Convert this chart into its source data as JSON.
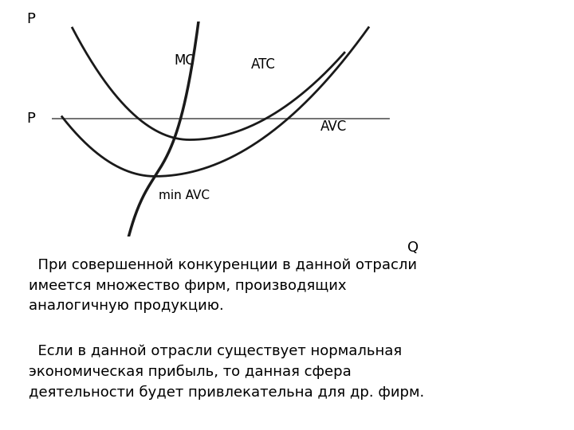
{
  "background_color": "#ffffff",
  "text_color": "#000000",
  "curve_color": "#1a1a1a",
  "price_line_color": "#666666",
  "axis_color": "#666666",
  "p_label": "P",
  "q_label": "Q",
  "price_tick_label": "P",
  "mc_label": "MC",
  "atc_label": "ATC",
  "avc_label": "AVC",
  "min_avc_label": "min AVC",
  "text_para1": "  При совершенной конкуренции в данной отрасли\nимеется множество фирм, производящих\nаналогичную продукцию.",
  "text_para2": "  Если в данной отрасли существует нормальная\nэкономическая прибыль, то данная сфера\nдеятельности будет привлекательна для др. фирм.",
  "font_size_axis_label": 13,
  "font_size_curve_label": 12,
  "font_size_text": 13
}
